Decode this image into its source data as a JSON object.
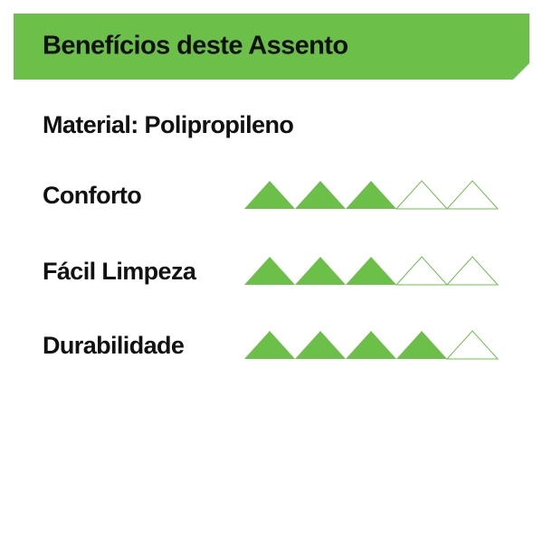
{
  "header": {
    "title": "Benefícios deste Assento"
  },
  "material": "Material: Polipropileno",
  "color": "#6cc04a",
  "ratings": [
    {
      "label": "Conforto",
      "value": 3,
      "max": 5
    },
    {
      "label": "Fácil Limpeza",
      "value": 3,
      "max": 5
    },
    {
      "label": "Durabilidade",
      "value": 4,
      "max": 5
    }
  ]
}
